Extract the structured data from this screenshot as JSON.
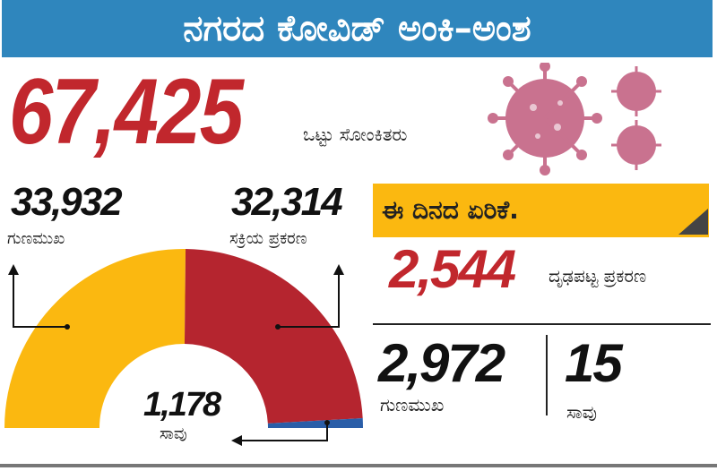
{
  "header": {
    "title": "ನಗರದ ಕೋವಿಡ್ ಅಂಕಿ–ಅಂಶ"
  },
  "total": {
    "value": "67,425",
    "label": "ಒಟ್ಟು ಸೋಂಕಿತರು"
  },
  "today": {
    "title": "ಈ ದಿನದ ಏರಿಕೆ.",
    "confirmed": "2,544",
    "confirmed_label": "ದೃಢಪಟ್ಟ ಪ್ರಕರಣ",
    "recovered": "2,972",
    "recovered_label": "ಗುಣಮುಖ",
    "deaths": "15",
    "deaths_label": "ಸಾವು"
  },
  "colors": {
    "header": "#2f86bd",
    "recovered": "#fbb810",
    "active": "#b5252f",
    "deaths": "#2a5ea8",
    "virus": "#c9728f"
  },
  "chart_data": {
    "type": "pie",
    "subtype": "half-donut",
    "categories": [
      "ಗುಣಮುಖ",
      "ಸಕ್ರಿಯ ಪ್ರಕರಣ",
      "ಸಾವು"
    ],
    "values": [
      33932,
      32314,
      1178
    ],
    "value_labels": [
      "33,932",
      "32,314",
      "1,178"
    ]
  }
}
